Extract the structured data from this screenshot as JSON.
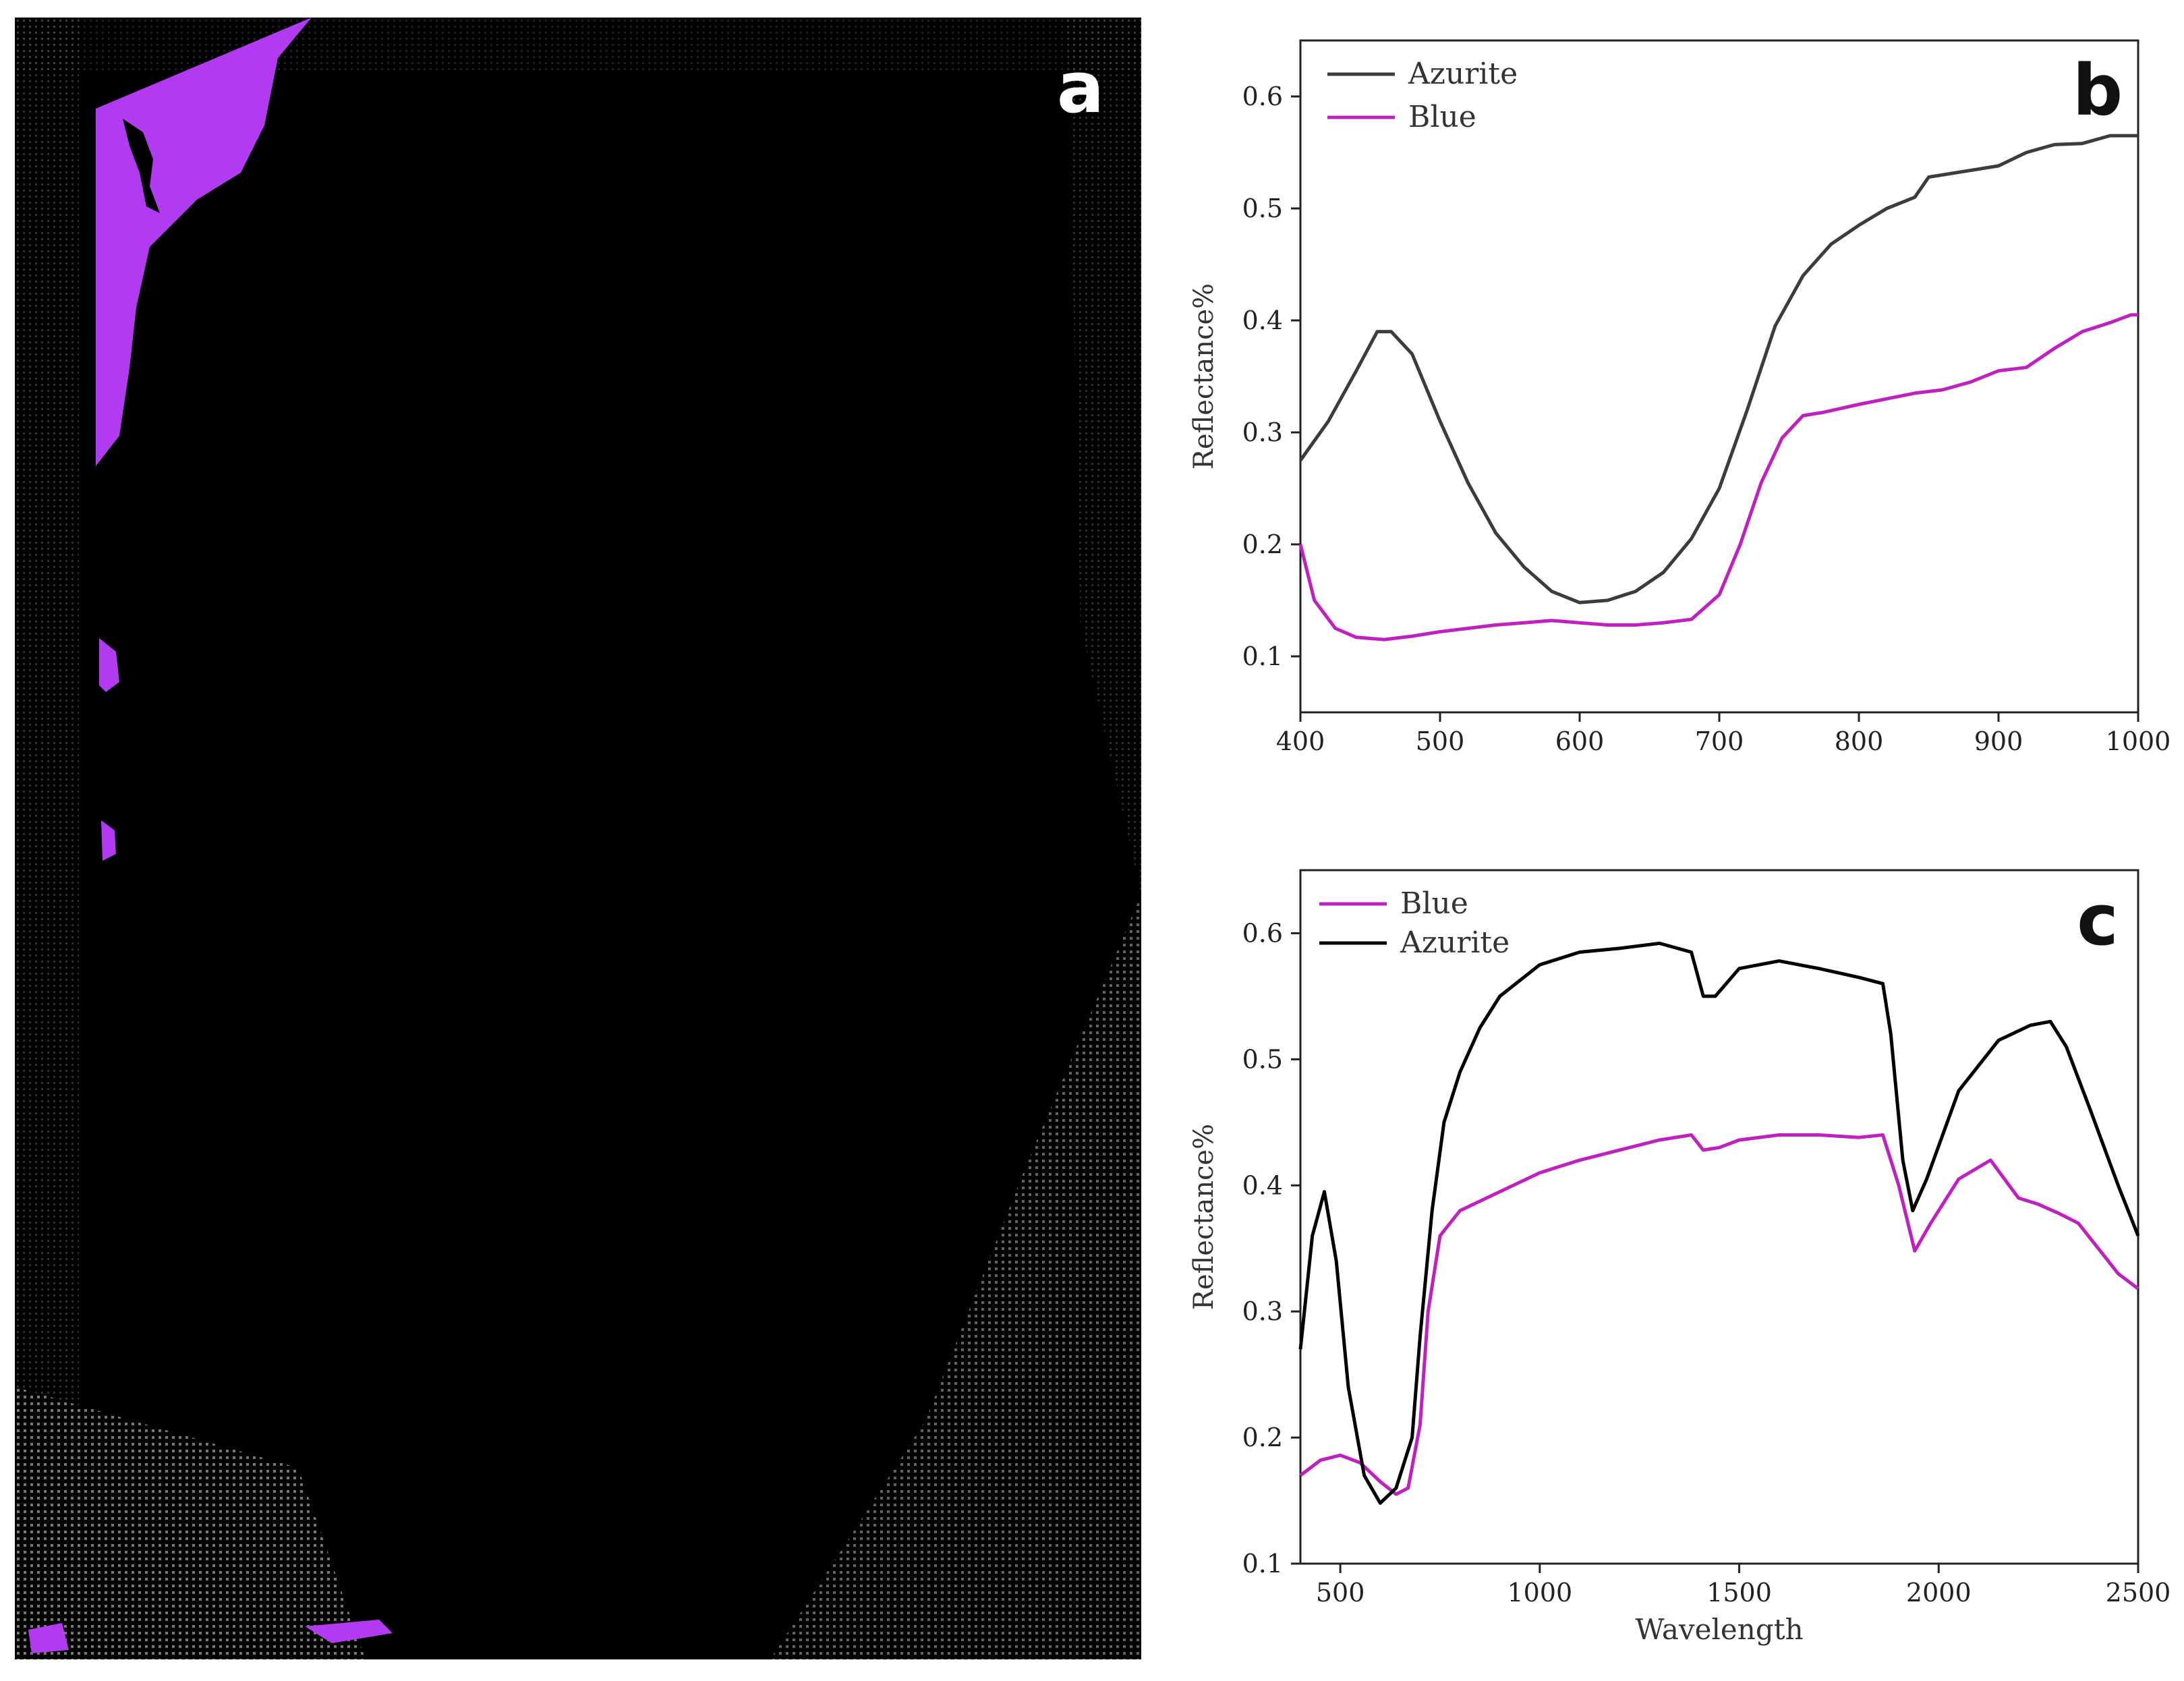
{
  "panel_a": {
    "label": "a",
    "colors": {
      "background": "#000000",
      "mask": "#b23af0",
      "speckle": "#ffffff"
    }
  },
  "chart_data": [
    {
      "id": "b",
      "type": "line",
      "label": "b",
      "title": "",
      "xlabel": "",
      "ylabel": "Reflectance%",
      "xlim": [
        400,
        1000
      ],
      "ylim": [
        0.05,
        0.65
      ],
      "xticks": [
        400,
        500,
        600,
        700,
        800,
        900,
        1000
      ],
      "yticks": [
        0.1,
        0.2,
        0.3,
        0.4,
        0.5,
        0.6
      ],
      "grid": false,
      "legend_position": "top-left",
      "series": [
        {
          "name": "Azurite",
          "color": "#3c3c3c",
          "points": [
            [
              400,
              0.275
            ],
            [
              420,
              0.31
            ],
            [
              440,
              0.355
            ],
            [
              455,
              0.39
            ],
            [
              465,
              0.39
            ],
            [
              480,
              0.37
            ],
            [
              500,
              0.31
            ],
            [
              520,
              0.255
            ],
            [
              540,
              0.21
            ],
            [
              560,
              0.18
            ],
            [
              580,
              0.158
            ],
            [
              600,
              0.148
            ],
            [
              620,
              0.15
            ],
            [
              640,
              0.158
            ],
            [
              660,
              0.175
            ],
            [
              680,
              0.205
            ],
            [
              700,
              0.25
            ],
            [
              720,
              0.32
            ],
            [
              740,
              0.395
            ],
            [
              760,
              0.44
            ],
            [
              780,
              0.468
            ],
            [
              800,
              0.485
            ],
            [
              820,
              0.5
            ],
            [
              840,
              0.51
            ],
            [
              850,
              0.528
            ],
            [
              870,
              0.532
            ],
            [
              900,
              0.538
            ],
            [
              920,
              0.55
            ],
            [
              940,
              0.557
            ],
            [
              960,
              0.558
            ],
            [
              980,
              0.565
            ],
            [
              1000,
              0.565
            ]
          ]
        },
        {
          "name": "Blue",
          "color": "#c020c0",
          "points": [
            [
              400,
              0.2
            ],
            [
              410,
              0.15
            ],
            [
              425,
              0.125
            ],
            [
              440,
              0.117
            ],
            [
              460,
              0.115
            ],
            [
              480,
              0.118
            ],
            [
              500,
              0.122
            ],
            [
              520,
              0.125
            ],
            [
              540,
              0.128
            ],
            [
              560,
              0.13
            ],
            [
              580,
              0.132
            ],
            [
              600,
              0.13
            ],
            [
              620,
              0.128
            ],
            [
              640,
              0.128
            ],
            [
              660,
              0.13
            ],
            [
              680,
              0.133
            ],
            [
              700,
              0.155
            ],
            [
              715,
              0.2
            ],
            [
              730,
              0.255
            ],
            [
              745,
              0.295
            ],
            [
              760,
              0.315
            ],
            [
              775,
              0.318
            ],
            [
              800,
              0.325
            ],
            [
              820,
              0.33
            ],
            [
              840,
              0.335
            ],
            [
              860,
              0.338
            ],
            [
              880,
              0.345
            ],
            [
              900,
              0.355
            ],
            [
              920,
              0.358
            ],
            [
              940,
              0.375
            ],
            [
              960,
              0.39
            ],
            [
              980,
              0.398
            ],
            [
              995,
              0.405
            ],
            [
              1000,
              0.405
            ]
          ]
        }
      ]
    },
    {
      "id": "c",
      "type": "line",
      "label": "c",
      "title": "",
      "xlabel": "Wavelength",
      "ylabel": "Reflectance%",
      "xlim": [
        400,
        2500
      ],
      "ylim": [
        0.1,
        0.65
      ],
      "xticks": [
        500,
        1000,
        1500,
        2000,
        2500
      ],
      "yticks": [
        0.1,
        0.2,
        0.3,
        0.4,
        0.5,
        0.6
      ],
      "grid": false,
      "legend_position": "top-left",
      "series": [
        {
          "name": "Blue",
          "color": "#c020c0",
          "points": [
            [
              400,
              0.17
            ],
            [
              450,
              0.182
            ],
            [
              500,
              0.186
            ],
            [
              550,
              0.18
            ],
            [
              600,
              0.165
            ],
            [
              640,
              0.155
            ],
            [
              670,
              0.16
            ],
            [
              700,
              0.21
            ],
            [
              720,
              0.3
            ],
            [
              750,
              0.36
            ],
            [
              800,
              0.38
            ],
            [
              900,
              0.395
            ],
            [
              1000,
              0.41
            ],
            [
              1100,
              0.42
            ],
            [
              1200,
              0.428
            ],
            [
              1300,
              0.436
            ],
            [
              1380,
              0.44
            ],
            [
              1410,
              0.428
            ],
            [
              1450,
              0.43
            ],
            [
              1500,
              0.436
            ],
            [
              1600,
              0.44
            ],
            [
              1700,
              0.44
            ],
            [
              1800,
              0.438
            ],
            [
              1860,
              0.44
            ],
            [
              1900,
              0.4
            ],
            [
              1940,
              0.348
            ],
            [
              1980,
              0.37
            ],
            [
              2050,
              0.405
            ],
            [
              2130,
              0.42
            ],
            [
              2200,
              0.39
            ],
            [
              2250,
              0.385
            ],
            [
              2300,
              0.378
            ],
            [
              2350,
              0.37
            ],
            [
              2400,
              0.35
            ],
            [
              2450,
              0.33
            ],
            [
              2500,
              0.318
            ]
          ]
        },
        {
          "name": "Azurite",
          "color": "#000000",
          "points": [
            [
              400,
              0.27
            ],
            [
              430,
              0.36
            ],
            [
              460,
              0.395
            ],
            [
              490,
              0.34
            ],
            [
              520,
              0.24
            ],
            [
              560,
              0.17
            ],
            [
              600,
              0.148
            ],
            [
              640,
              0.16
            ],
            [
              680,
              0.2
            ],
            [
              700,
              0.28
            ],
            [
              730,
              0.38
            ],
            [
              760,
              0.45
            ],
            [
              800,
              0.49
            ],
            [
              850,
              0.525
            ],
            [
              900,
              0.55
            ],
            [
              1000,
              0.575
            ],
            [
              1100,
              0.585
            ],
            [
              1200,
              0.588
            ],
            [
              1300,
              0.592
            ],
            [
              1380,
              0.585
            ],
            [
              1410,
              0.55
            ],
            [
              1440,
              0.55
            ],
            [
              1500,
              0.572
            ],
            [
              1600,
              0.578
            ],
            [
              1700,
              0.572
            ],
            [
              1800,
              0.565
            ],
            [
              1860,
              0.56
            ],
            [
              1880,
              0.52
            ],
            [
              1910,
              0.42
            ],
            [
              1935,
              0.38
            ],
            [
              1970,
              0.405
            ],
            [
              2050,
              0.475
            ],
            [
              2150,
              0.515
            ],
            [
              2230,
              0.527
            ],
            [
              2280,
              0.53
            ],
            [
              2320,
              0.51
            ],
            [
              2380,
              0.46
            ],
            [
              2450,
              0.4
            ],
            [
              2500,
              0.36
            ]
          ]
        }
      ]
    }
  ]
}
